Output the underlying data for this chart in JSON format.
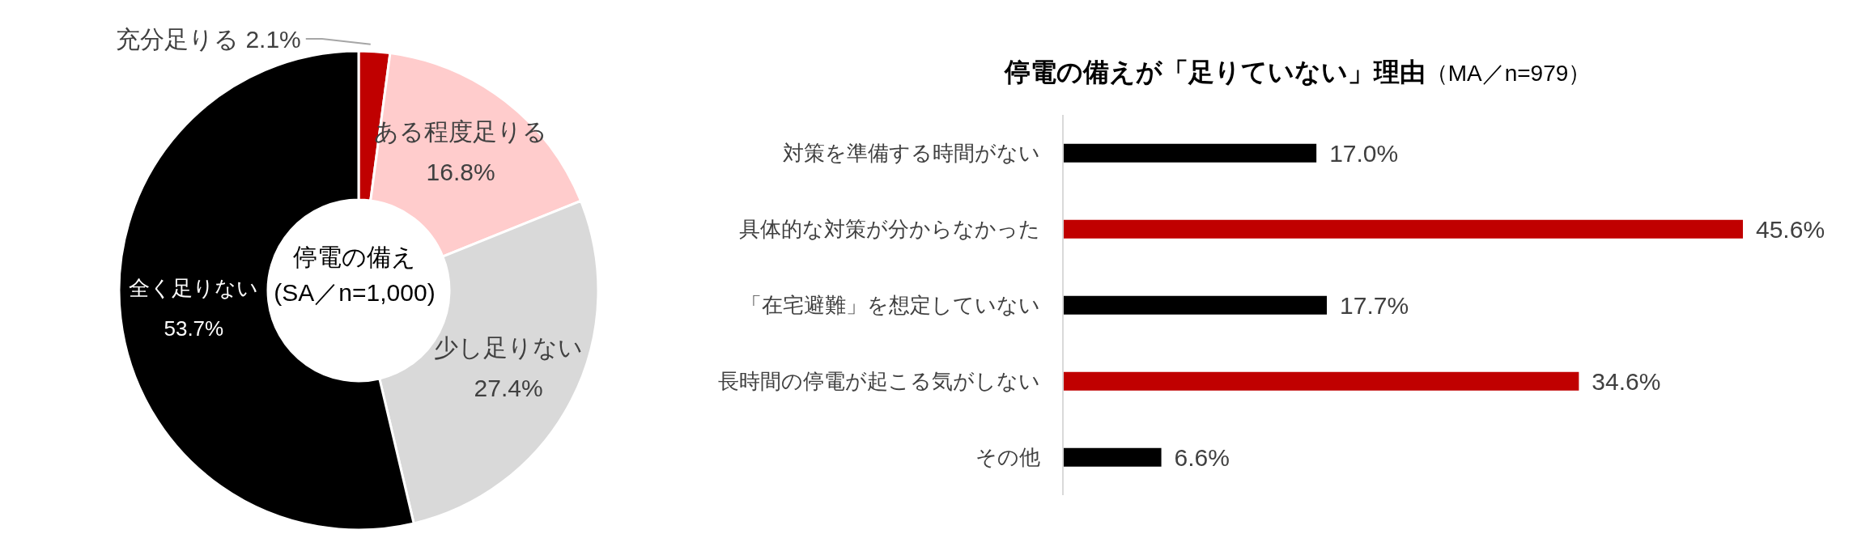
{
  "chart_data": [
    {
      "type": "donut",
      "title": "停電の備え\n(SA／n=1,000)",
      "categories": [
        "充分足りる",
        "ある程度足りる",
        "少し足りない",
        "全く足りない"
      ],
      "values": [
        2.1,
        16.8,
        27.4,
        53.7
      ],
      "colors": [
        "#c00000",
        "#ffcccc",
        "#d9d9d9",
        "#000000"
      ],
      "value_labels": [
        "2.1%",
        "16.8%",
        "27.4%",
        "53.7%"
      ],
      "legend": false
    },
    {
      "type": "bar",
      "orientation": "horizontal",
      "title": "停電の備えが「足りていない」理由",
      "subtitle": "（MA／n=979）",
      "categories": [
        "対策を準備する時間がない",
        "具体的な対策が分からなかった",
        "「在宅避難」を想定していない",
        "長時間の停電が起こる気がしない",
        "その他"
      ],
      "values": [
        17.0,
        45.6,
        17.7,
        34.6,
        6.6
      ],
      "colors": [
        "#000000",
        "#c00000",
        "#000000",
        "#c00000",
        "#000000"
      ],
      "value_labels": [
        "17.0%",
        "45.6%",
        "17.7%",
        "34.6%",
        "6.6%"
      ],
      "legend": false
    }
  ]
}
